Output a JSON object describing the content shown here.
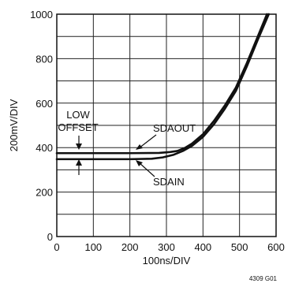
{
  "chart_data": {
    "type": "line",
    "title": "",
    "xlabel": "100ns/DIV",
    "ylabel": "200mV/DIV",
    "xlim": [
      0,
      600
    ],
    "ylim": [
      0,
      1000
    ],
    "x_ticks": [
      0,
      100,
      200,
      300,
      400,
      500,
      600
    ],
    "y_ticks": [
      0,
      200,
      400,
      600,
      800,
      1000
    ],
    "grid": true,
    "series": [
      {
        "name": "SDAOUT",
        "x": [
          0,
          100,
          200,
          280,
          310,
          330,
          350,
          370,
          400,
          430,
          460,
          490,
          520,
          550,
          575
        ],
        "y": [
          375,
          375,
          375,
          376,
          380,
          385,
          398,
          418,
          460,
          520,
          590,
          670,
          780,
          900,
          1000
        ]
      },
      {
        "name": "SDAIN",
        "x": [
          0,
          100,
          200,
          260,
          290,
          320,
          345,
          370,
          400,
          430,
          460,
          490,
          520,
          550,
          580
        ],
        "y": [
          348,
          348,
          348,
          350,
          356,
          368,
          385,
          408,
          448,
          505,
          575,
          655,
          765,
          885,
          1000
        ]
      }
    ],
    "annotations": {
      "low_offset_line1": "LOW",
      "low_offset_line2": "OFFSET",
      "sdaout_label": "SDAOUT",
      "sdain_label": "SDAIN"
    },
    "figure_id": "4309 G01"
  }
}
